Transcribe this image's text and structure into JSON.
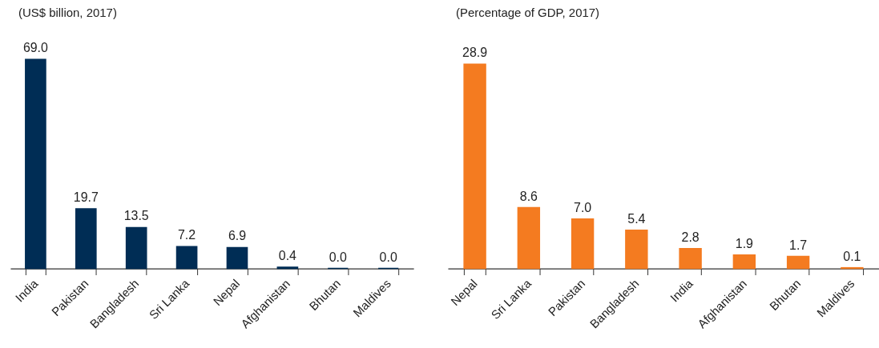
{
  "chart_data": [
    {
      "type": "bar",
      "title": "(US$ billion, 2017)",
      "categories": [
        "India",
        "Pakistan",
        "Bangladesh",
        "Sri Lanka",
        "Nepal",
        "Afghanistan",
        "Bhutan",
        "Maldives"
      ],
      "values": [
        69.0,
        19.7,
        13.5,
        7.2,
        6.9,
        0.4,
        0.0,
        0.0
      ],
      "value_labels": [
        "69.0",
        "19.7",
        "13.5",
        "7.2",
        "6.9",
        "0.4",
        "0.0",
        "0.0"
      ],
      "color": "#002d55",
      "tick_labels": "x"
    },
    {
      "type": "bar",
      "title": "(Percentage of GDP, 2017)",
      "categories": [
        "Nepal",
        "Sri Lanka",
        "Pakistan",
        "Bangladesh",
        "India",
        "Afghanistan",
        "Bhutan",
        "Maldives"
      ],
      "values": [
        28.9,
        8.6,
        7.0,
        5.4,
        2.8,
        1.9,
        1.7,
        0.1
      ],
      "value_labels": [
        "28.9",
        "8.6",
        "7.0",
        "5.4",
        "2.8",
        "1.9",
        "1.7",
        "0.1"
      ],
      "color": "#f47b20",
      "tick_labels": "x"
    }
  ]
}
